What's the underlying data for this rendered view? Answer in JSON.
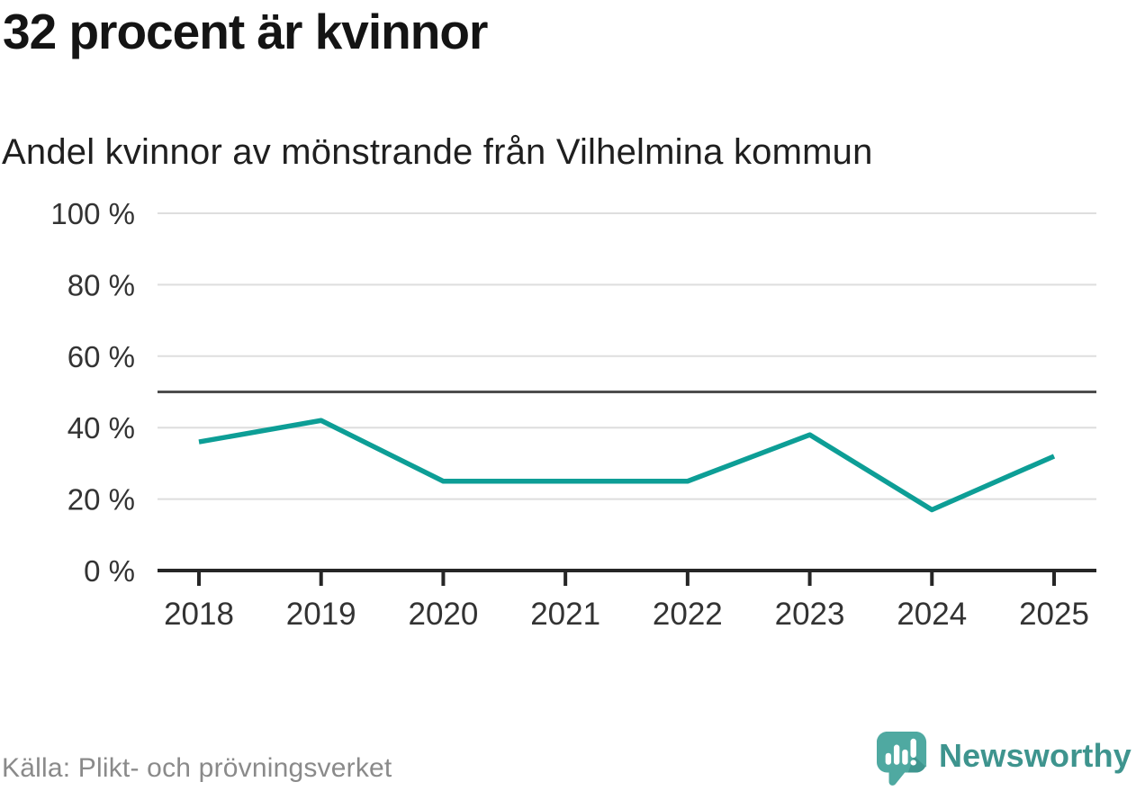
{
  "header": {
    "title": "32 procent är kvinnor",
    "subtitle": "Andel kvinnor av mönstrande från Vilhelmina kommun"
  },
  "chart_data": {
    "type": "line",
    "title": "32 procent är kvinnor",
    "subtitle": "Andel kvinnor av mönstrande från Vilhelmina kommun",
    "categories": [
      "2018",
      "2019",
      "2020",
      "2021",
      "2022",
      "2023",
      "2024",
      "2025"
    ],
    "values": [
      36,
      42,
      25,
      25,
      25,
      38,
      17,
      32
    ],
    "ylim": [
      0,
      100
    ],
    "yticks": [
      0,
      20,
      40,
      60,
      80,
      100
    ],
    "ytick_label_suffix": " %",
    "reference_line": 50,
    "grid": true,
    "legend": "none",
    "line_color": "#0d9e96"
  },
  "footer": {
    "source": "Källa: Plikt- och prövningsverket",
    "brand": "Newsworthy"
  },
  "colors": {
    "title": "#141414",
    "subtitle": "#1f1f1f",
    "axis_label": "#333333",
    "gridline": "#dedede",
    "reference_line": "#4d4d4d",
    "axis": "#262626",
    "line": "#0d9e96",
    "source_text": "#8a8a8a",
    "brand_text": "#3e948e",
    "brand_icon": "#4fa9a1",
    "brand_icon_shade": "#3f968f",
    "brand_icon_glyph": "#ffffff"
  }
}
